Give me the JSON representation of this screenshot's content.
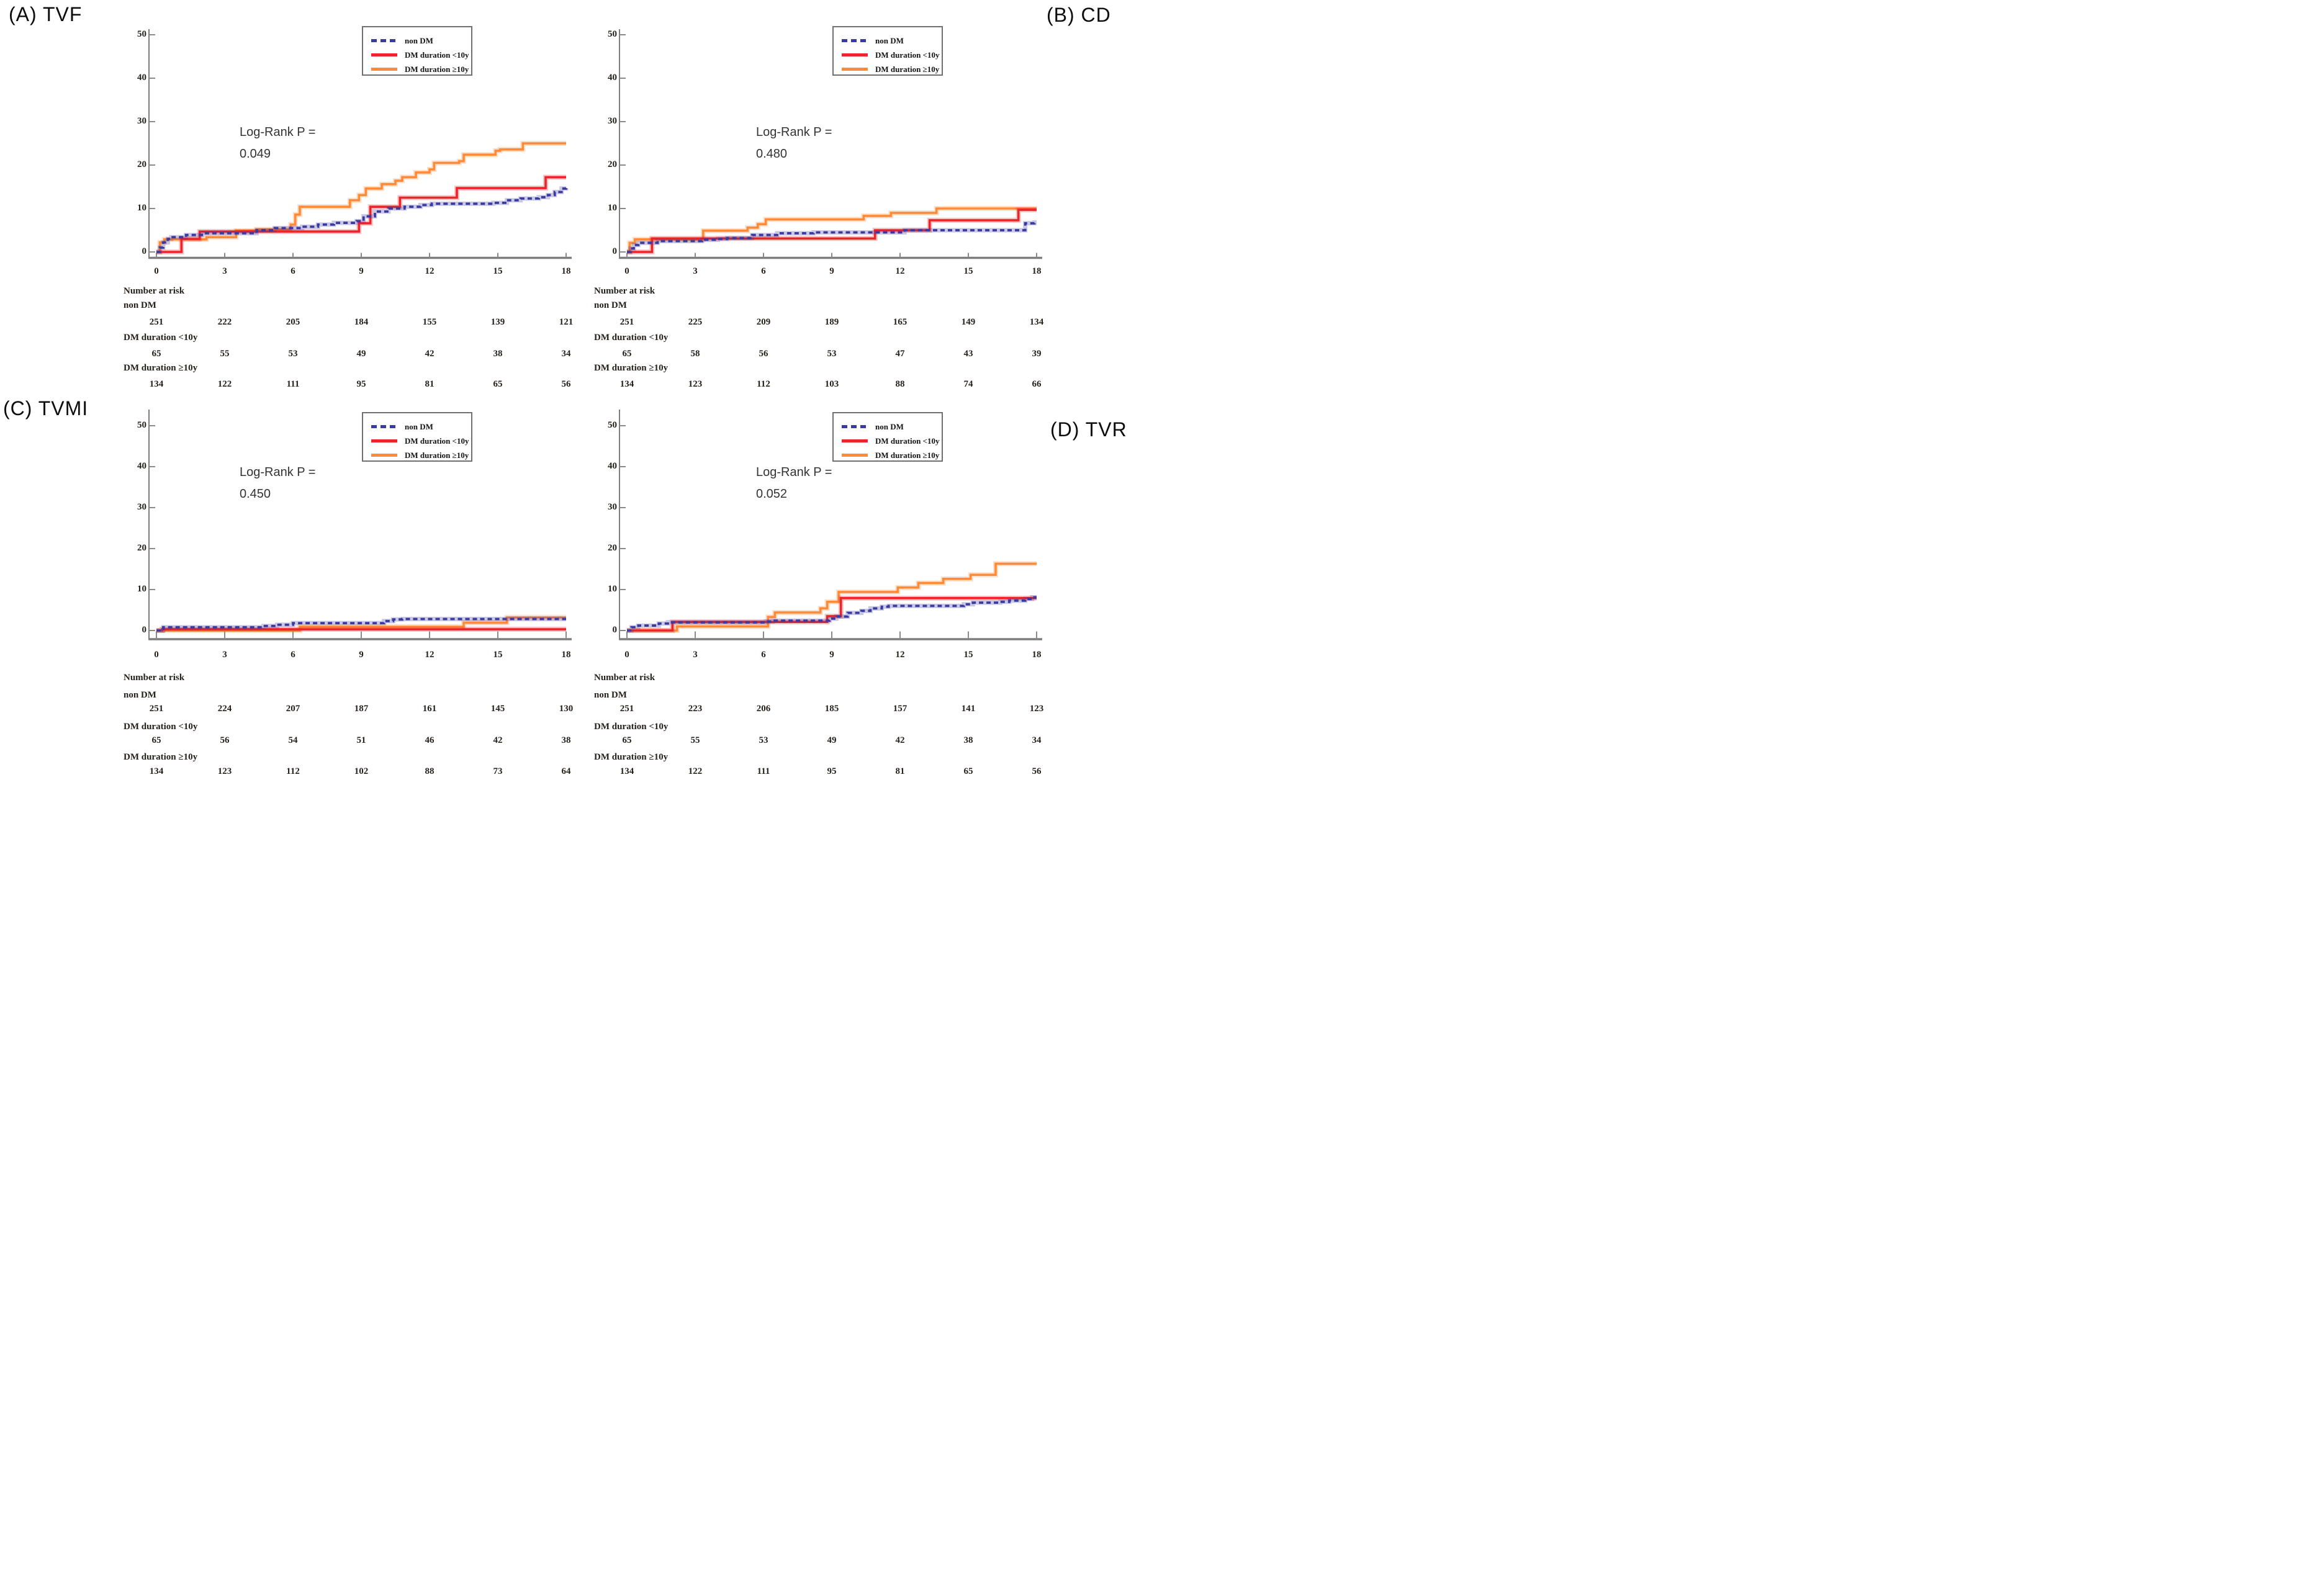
{
  "figure": {
    "background": "#ffffff"
  },
  "legend": {
    "items": [
      {
        "label": "non DM",
        "color": "#3b3b9f",
        "style": "dashed"
      },
      {
        "label": "DM duration <10y",
        "color": "#ee2428",
        "style": "solid"
      },
      {
        "label": "DM duration ≥10y",
        "color": "#ff8a38",
        "style": "solid"
      }
    ]
  },
  "chart_data": [
    {
      "id": "A",
      "title": "(A) TVF",
      "type": "line",
      "xlabel": "",
      "ylabel": "",
      "xlim": [
        0,
        18
      ],
      "ylim": [
        0,
        50
      ],
      "x_ticks": [
        0,
        3,
        6,
        9,
        12,
        15,
        18
      ],
      "y_ticks": [
        0,
        10,
        20,
        30,
        40,
        50
      ],
      "log_rank": {
        "label": "Log-Rank P =",
        "value": "0.049"
      },
      "series": [
        {
          "name": "non DM",
          "color": "#3b3b9f",
          "dashed": true,
          "steps": [
            [
              0,
              0
            ],
            [
              0.15,
              1
            ],
            [
              0.3,
              2.2
            ],
            [
              0.5,
              3
            ],
            [
              0.65,
              3.4
            ],
            [
              1.3,
              3.9
            ],
            [
              2,
              4.3
            ],
            [
              4.4,
              5
            ],
            [
              5.2,
              5.5
            ],
            [
              6.4,
              5.8
            ],
            [
              7.1,
              6.3
            ],
            [
              7.8,
              6.7
            ],
            [
              8.8,
              7.1
            ],
            [
              9.1,
              8.2
            ],
            [
              9.6,
              9.3
            ],
            [
              10.2,
              10
            ],
            [
              10.9,
              10.4
            ],
            [
              11.6,
              10.8
            ],
            [
              12.1,
              11.1
            ],
            [
              14.8,
              11.3
            ],
            [
              15.4,
              11.9
            ],
            [
              16,
              12.3
            ],
            [
              16.8,
              12.6
            ],
            [
              17.2,
              13.1
            ],
            [
              17.5,
              13.8
            ],
            [
              17.8,
              14.6
            ],
            [
              18,
              14.7
            ]
          ]
        },
        {
          "name": "DM duration <10y",
          "color": "#ee2428",
          "dashed": false,
          "steps": [
            [
              0,
              0
            ],
            [
              1.1,
              3
            ],
            [
              1.9,
              4.7
            ],
            [
              8.9,
              6.6
            ],
            [
              9.4,
              10.4
            ],
            [
              10.7,
              12.5
            ],
            [
              13.2,
              14.7
            ],
            [
              17.1,
              17.2
            ],
            [
              18,
              17.2
            ]
          ]
        },
        {
          "name": "DM duration ≥10y",
          "color": "#ff8a38",
          "dashed": false,
          "steps": [
            [
              0,
              0
            ],
            [
              0.15,
              2.2
            ],
            [
              0.35,
              2.9
            ],
            [
              2.2,
              3.4
            ],
            [
              3.5,
              4.9
            ],
            [
              4.4,
              5.2
            ],
            [
              5.9,
              6.3
            ],
            [
              6.1,
              8.6
            ],
            [
              6.3,
              10.4
            ],
            [
              8.5,
              11.9
            ],
            [
              8.9,
              13.1
            ],
            [
              9.2,
              14.6
            ],
            [
              9.9,
              15.6
            ],
            [
              10.5,
              16.4
            ],
            [
              10.8,
              17.2
            ],
            [
              11.4,
              18.3
            ],
            [
              12,
              19
            ],
            [
              12.2,
              20.5
            ],
            [
              13.3,
              20.9
            ],
            [
              13.5,
              22.4
            ],
            [
              14.9,
              23.3
            ],
            [
              15.1,
              23.6
            ],
            [
              16.1,
              25
            ],
            [
              18,
              25
            ]
          ]
        }
      ],
      "at_risk": {
        "header": "Number at risk",
        "time_points": [
          0,
          3,
          6,
          9,
          12,
          15,
          18
        ],
        "groups": [
          {
            "label": "non DM",
            "counts": [
              251,
              222,
              205,
              184,
              155,
              139,
              121
            ]
          },
          {
            "label": "DM duration <10y",
            "counts": [
              65,
              55,
              53,
              49,
              42,
              38,
              34
            ]
          },
          {
            "label": "DM duration ≥10y",
            "counts": [
              134,
              122,
              111,
              95,
              81,
              65,
              56
            ]
          }
        ]
      }
    },
    {
      "id": "B",
      "title": "(B) CD",
      "type": "line",
      "xlabel": "",
      "ylabel": "",
      "xlim": [
        0,
        18
      ],
      "ylim": [
        0,
        50
      ],
      "x_ticks": [
        0,
        3,
        6,
        9,
        12,
        15,
        18
      ],
      "y_ticks": [
        0,
        10,
        20,
        30,
        40,
        50
      ],
      "log_rank": {
        "label": "Log-Rank P =",
        "value": "0.480"
      },
      "series": [
        {
          "name": "non DM",
          "color": "#3b3b9f",
          "dashed": true,
          "steps": [
            [
              0,
              0
            ],
            [
              0.15,
              0.8
            ],
            [
              0.3,
              1.6
            ],
            [
              0.5,
              2.1
            ],
            [
              1.35,
              2.5
            ],
            [
              3.3,
              2.8
            ],
            [
              4,
              3
            ],
            [
              4.4,
              3.2
            ],
            [
              5.5,
              3.9
            ],
            [
              6.6,
              4.3
            ],
            [
              8.2,
              4.5
            ],
            [
              12.2,
              5
            ],
            [
              17.5,
              6.6
            ],
            [
              17.9,
              6.8
            ],
            [
              18,
              6.8
            ]
          ]
        },
        {
          "name": "DM duration <10y",
          "color": "#ee2428",
          "dashed": false,
          "steps": [
            [
              0,
              0
            ],
            [
              1.1,
              3.1
            ],
            [
              10.9,
              5
            ],
            [
              13.3,
              7.3
            ],
            [
              17.2,
              9.7
            ],
            [
              18,
              9.7
            ]
          ]
        },
        {
          "name": "DM duration ≥10y",
          "color": "#ff8a38",
          "dashed": false,
          "steps": [
            [
              0,
              0
            ],
            [
              0.12,
              2.1
            ],
            [
              0.35,
              2.9
            ],
            [
              3.35,
              4.9
            ],
            [
              5.3,
              5.6
            ],
            [
              5.75,
              6.4
            ],
            [
              6.1,
              7.5
            ],
            [
              10.4,
              8.3
            ],
            [
              11.6,
              9
            ],
            [
              13.6,
              10
            ],
            [
              18,
              10
            ]
          ]
        }
      ],
      "at_risk": {
        "header": "Number at risk",
        "time_points": [
          0,
          3,
          6,
          9,
          12,
          15,
          18
        ],
        "groups": [
          {
            "label": "non DM",
            "counts": [
              251,
              225,
              209,
              189,
              165,
              149,
              134
            ]
          },
          {
            "label": "DM duration <10y",
            "counts": [
              65,
              58,
              56,
              53,
              47,
              43,
              39
            ]
          },
          {
            "label": "DM duration ≥10y",
            "counts": [
              134,
              123,
              112,
              103,
              88,
              74,
              66
            ]
          }
        ]
      }
    },
    {
      "id": "C",
      "title": "(C) TVMI",
      "type": "line",
      "xlabel": "",
      "ylabel": "",
      "xlim": [
        0,
        18
      ],
      "ylim": [
        0,
        50
      ],
      "x_ticks": [
        0,
        3,
        6,
        9,
        12,
        15,
        18
      ],
      "y_ticks": [
        0,
        10,
        20,
        30,
        40,
        50
      ],
      "log_rank": {
        "label": "Log-Rank P =",
        "value": "0.450"
      },
      "series": [
        {
          "name": "non DM",
          "color": "#3b3b9f",
          "dashed": true,
          "steps": [
            [
              0,
              0
            ],
            [
              0.3,
              0.8
            ],
            [
              4.7,
              1.1
            ],
            [
              5.3,
              1.4
            ],
            [
              6,
              1.8
            ],
            [
              10,
              2.3
            ],
            [
              10.4,
              2.7
            ],
            [
              10.8,
              2.8
            ],
            [
              18,
              2.8
            ]
          ]
        },
        {
          "name": "DM duration <10y",
          "color": "#ee2428",
          "dashed": false,
          "steps": [
            [
              0,
              0
            ],
            [
              0.25,
              0.3
            ],
            [
              18,
              0.3
            ]
          ]
        },
        {
          "name": "DM duration ≥10y",
          "color": "#ff8a38",
          "dashed": false,
          "steps": [
            [
              0,
              0
            ],
            [
              6.3,
              0.9
            ],
            [
              13.5,
              1.9
            ],
            [
              15.4,
              3.2
            ],
            [
              18,
              3.2
            ]
          ]
        }
      ],
      "at_risk": {
        "header": "Number at risk",
        "time_points": [
          0,
          3,
          6,
          9,
          12,
          15,
          18
        ],
        "groups": [
          {
            "label": "non DM",
            "counts": [
              251,
              224,
              207,
              187,
              161,
              145,
              130
            ]
          },
          {
            "label": "DM duration <10y",
            "counts": [
              65,
              56,
              54,
              51,
              46,
              42,
              38
            ]
          },
          {
            "label": "DM duration ≥10y",
            "counts": [
              134,
              123,
              112,
              102,
              88,
              73,
              64
            ]
          }
        ]
      }
    },
    {
      "id": "D",
      "title": "(D) TVR",
      "type": "line",
      "xlabel": "",
      "ylabel": "",
      "xlim": [
        0,
        18
      ],
      "ylim": [
        0,
        50
      ],
      "x_ticks": [
        0,
        3,
        6,
        9,
        12,
        15,
        18
      ],
      "y_ticks": [
        0,
        10,
        20,
        30,
        40,
        50
      ],
      "log_rank": {
        "label": "Log-Rank P =",
        "value": "0.052"
      },
      "series": [
        {
          "name": "non DM",
          "color": "#3b3b9f",
          "dashed": true,
          "steps": [
            [
              0,
              0
            ],
            [
              0.2,
              0.8
            ],
            [
              0.5,
              1.2
            ],
            [
              1.4,
              1.7
            ],
            [
              1.8,
              2
            ],
            [
              6.1,
              2.2
            ],
            [
              6.4,
              2.4
            ],
            [
              8.9,
              2.9
            ],
            [
              9.2,
              3.4
            ],
            [
              9.7,
              4.3
            ],
            [
              10.3,
              4.8
            ],
            [
              10.7,
              5.4
            ],
            [
              11.2,
              5.8
            ],
            [
              11.5,
              6
            ],
            [
              14.8,
              6.4
            ],
            [
              15.2,
              6.8
            ],
            [
              16.4,
              7
            ],
            [
              16.8,
              7.3
            ],
            [
              17.5,
              7.7
            ],
            [
              17.8,
              8.1
            ],
            [
              18,
              8.1
            ]
          ]
        },
        {
          "name": "DM duration <10y",
          "color": "#ee2428",
          "dashed": false,
          "steps": [
            [
              0,
              0
            ],
            [
              2,
              2.1
            ],
            [
              8.8,
              3.5
            ],
            [
              9.4,
              7.9
            ],
            [
              18,
              7.9
            ]
          ]
        },
        {
          "name": "DM duration ≥10y",
          "color": "#ff8a38",
          "dashed": false,
          "steps": [
            [
              0,
              0
            ],
            [
              2.2,
              1
            ],
            [
              6.2,
              3.3
            ],
            [
              6.5,
              4.4
            ],
            [
              8.5,
              5.4
            ],
            [
              8.8,
              7
            ],
            [
              9.3,
              9.4
            ],
            [
              11.9,
              10.5
            ],
            [
              12.8,
              11.6
            ],
            [
              13.9,
              12.6
            ],
            [
              15.1,
              13.6
            ],
            [
              16.2,
              16.3
            ],
            [
              18,
              16.3
            ]
          ]
        }
      ],
      "at_risk": {
        "header": "Number at risk",
        "time_points": [
          0,
          3,
          6,
          9,
          12,
          15,
          18
        ],
        "groups": [
          {
            "label": "non DM",
            "counts": [
              251,
              223,
              206,
              185,
              157,
              141,
              123
            ]
          },
          {
            "label": "DM duration <10y",
            "counts": [
              65,
              55,
              53,
              49,
              42,
              38,
              34
            ]
          },
          {
            "label": "DM duration ≥10y",
            "counts": [
              134,
              122,
              111,
              95,
              81,
              65,
              56
            ]
          }
        ]
      }
    }
  ]
}
